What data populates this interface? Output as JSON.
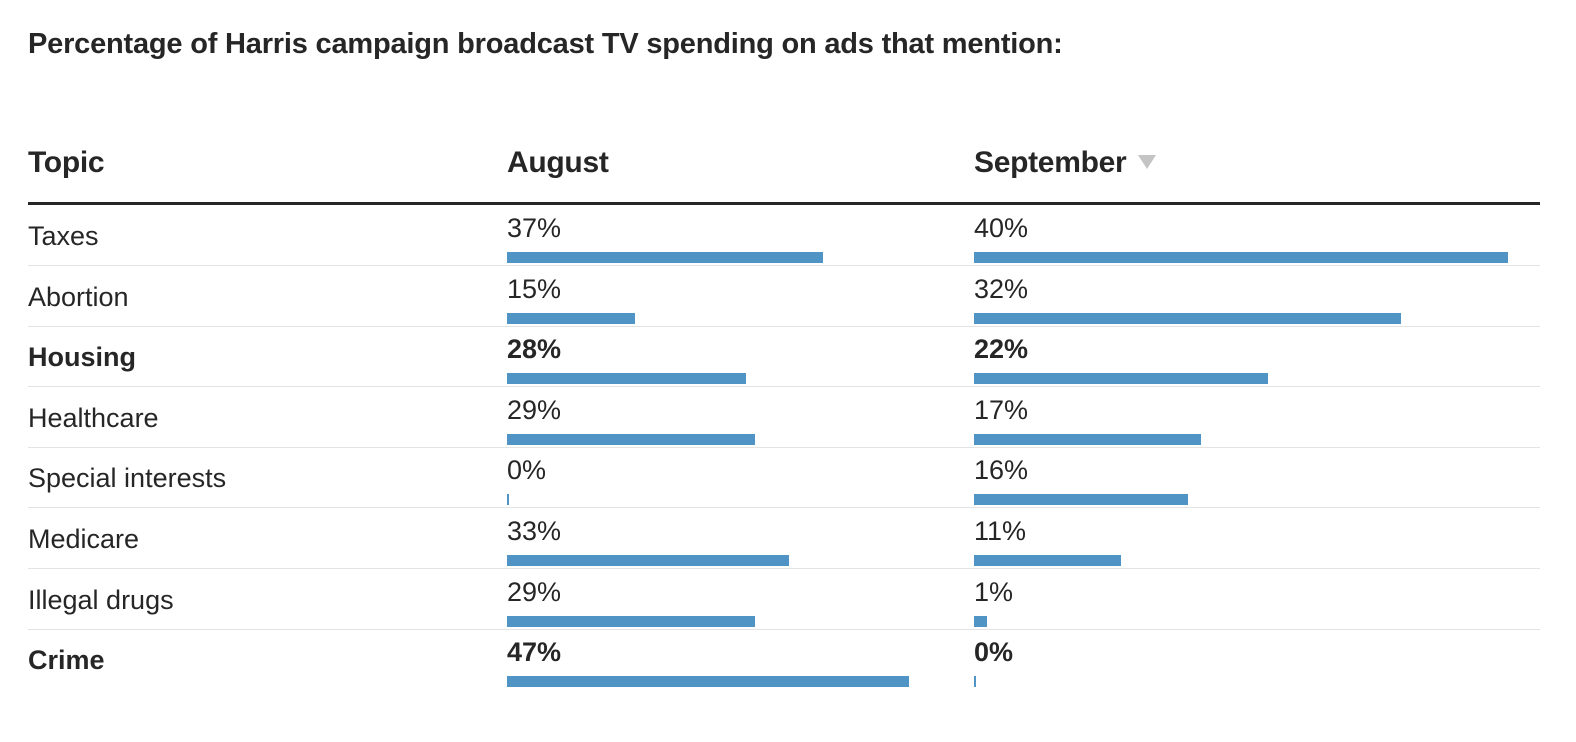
{
  "title": "Percentage of Harris campaign broadcast TV spending on ads that mention:",
  "colors": {
    "bar": "#4f94c4",
    "text": "#262626",
    "rule": "#262626",
    "divider": "#e3e3e3",
    "sort_icon": "#c4c4c4"
  },
  "chart_data": {
    "type": "bar",
    "title": "Percentage of Harris campaign broadcast TV spending on ads that mention:",
    "columns": [
      "Topic",
      "August",
      "September"
    ],
    "sort": {
      "column": "September",
      "direction": "descending",
      "icon": "sort-down-icon"
    },
    "categories": [
      "Taxes",
      "Abortion",
      "Housing",
      "Healthcare",
      "Special interests",
      "Medicare",
      "Illegal drugs",
      "Crime"
    ],
    "series": [
      {
        "name": "August",
        "values": [
          37,
          15,
          28,
          29,
          0,
          33,
          29,
          47
        ],
        "labels": [
          "37%",
          "15%",
          "28%",
          "29%",
          "0%",
          "33%",
          "29%",
          "47%"
        ]
      },
      {
        "name": "September",
        "values": [
          40,
          32,
          22,
          17,
          16,
          11,
          1,
          0
        ],
        "labels": [
          "40%",
          "32%",
          "22%",
          "17%",
          "16%",
          "11%",
          "1%",
          "0%"
        ]
      }
    ],
    "bold_rows": [
      "Housing",
      "Crime"
    ],
    "ylim": [
      0,
      47
    ]
  }
}
